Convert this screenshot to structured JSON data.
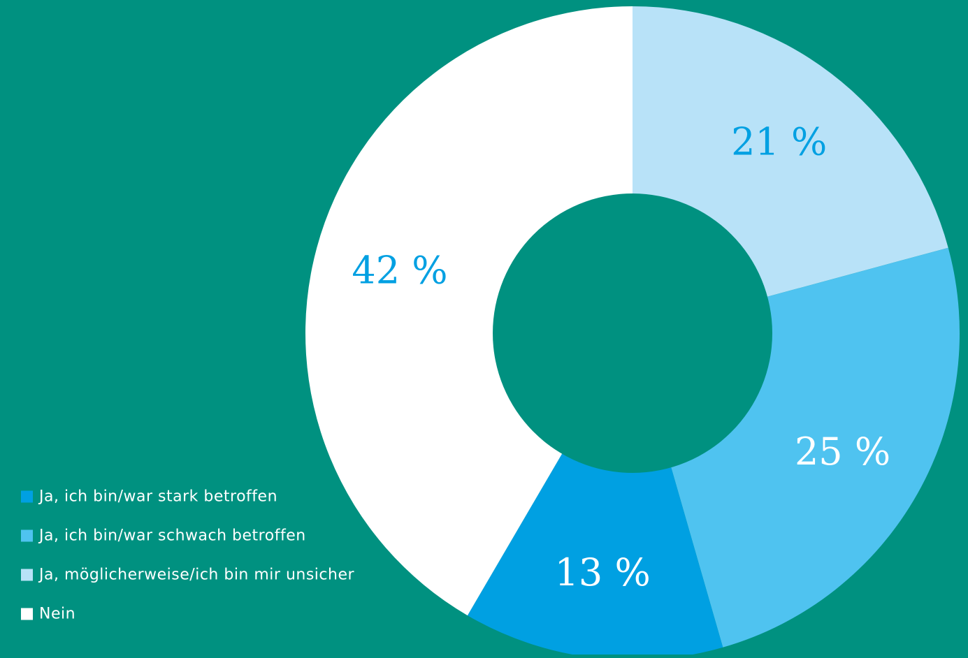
{
  "background": "#009180",
  "chart_data": {
    "type": "pie",
    "variant": "donut",
    "title": "",
    "labels": [
      "Ja, ich bin/war stark betroffen",
      "Ja, ich bin/war schwach betroffen",
      "Ja, möglicherweise/ich bin mir unsicher",
      "Nein"
    ],
    "values": [
      13,
      25,
      21,
      42
    ],
    "value_labels": [
      "13 %",
      "25 %",
      "21 %",
      "42 %"
    ],
    "colors": [
      "#00A0E2",
      "#4FC3F0",
      "#B8E2F8",
      "#FFFFFF"
    ],
    "label_colors": [
      "#FFFFFF",
      "#FFFFFF",
      "#00A0E2",
      "#00A0E2"
    ],
    "legend_position": "bottom-left"
  }
}
